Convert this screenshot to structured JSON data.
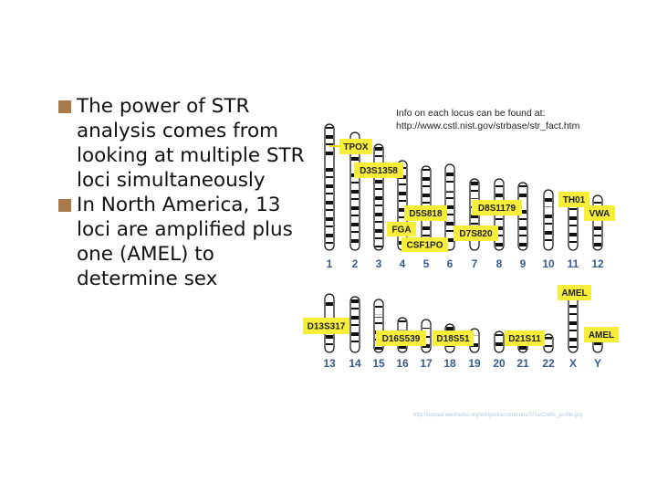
{
  "slide": {
    "bullets": [
      "The power of STR analysis comes from looking at multiple STR loci simultaneously",
      "In North America, 13 loci are amplified plus one (AMEL) to determine sex"
    ],
    "info_line1": "Info on each locus can be found at:",
    "info_line2": "http://www.cstl.nist.gov/strbase/str_fact.htm",
    "image_credit": "http://upload.wikimedia.org/wikipedia/commons/7/7a/Codis_profile.jpg"
  },
  "karyotype": {
    "chromosomes_row1": [
      "1",
      "2",
      "3",
      "4",
      "5",
      "6",
      "7",
      "8",
      "9",
      "10",
      "11",
      "12"
    ],
    "chromosomes_row2": [
      "13",
      "14",
      "15",
      "16",
      "17",
      "18",
      "19",
      "20",
      "21",
      "22",
      "X",
      "Y"
    ],
    "loci": [
      "TPOX",
      "D3S1358",
      "D5S818",
      "FGA",
      "CSF1PO",
      "D7S820",
      "D8S1179",
      "TH01",
      "VWA",
      "AMEL",
      "D13S317",
      "D16S539",
      "D18S51",
      "D21S11",
      "AMEL"
    ],
    "colors": {
      "label_box": "#f7ee3a",
      "chromosome_band": "#111111",
      "number_text": "#3a5a8c",
      "bullet_marker": "#a8794a"
    }
  }
}
